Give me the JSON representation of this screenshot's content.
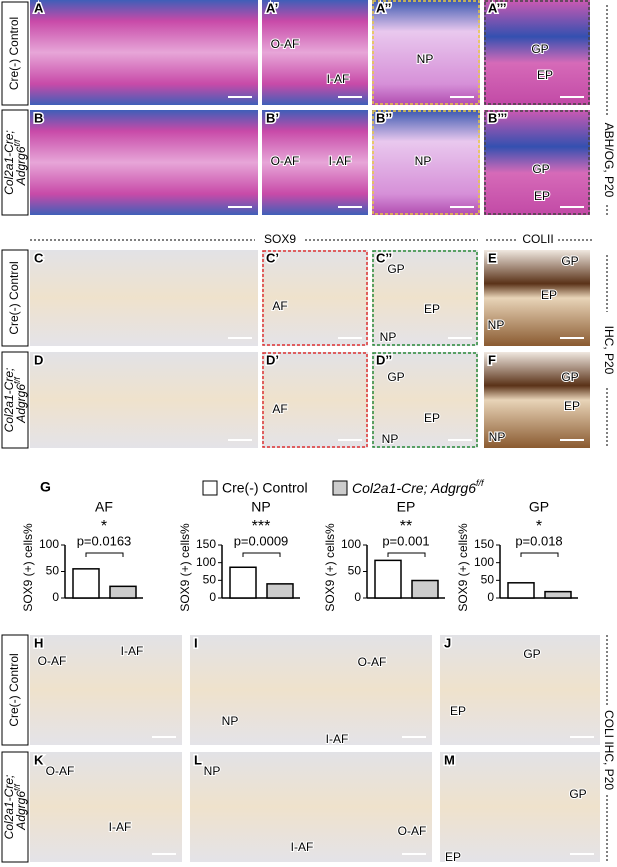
{
  "figure": {
    "genotypes": {
      "control": "Cre(-) Control",
      "mutant_line1": "Col2a1-Cre;",
      "mutant_line2": "Adgrg6",
      "mutant_sup": "f/f"
    },
    "side_labels": [
      "ABH/OG, P20",
      "IHC, P20",
      "COLI IHC, P20"
    ],
    "headers": [
      "SOX9",
      "COLII"
    ],
    "panel_g": "G",
    "panels": [
      {
        "letter": "A",
        "labels": []
      },
      {
        "letter": "A’",
        "labels": [
          "O-AF",
          "I-AF"
        ]
      },
      {
        "letter": "A’’",
        "labels": [
          "NP"
        ]
      },
      {
        "letter": "A’’’",
        "labels": [
          "GP",
          "EP"
        ]
      },
      {
        "letter": "B",
        "labels": []
      },
      {
        "letter": "B’",
        "labels": [
          "O-AF",
          "I-AF"
        ]
      },
      {
        "letter": "B’’",
        "labels": [
          "NP"
        ]
      },
      {
        "letter": "B’’’",
        "labels": [
          "GP",
          "EP"
        ]
      },
      {
        "letter": "C",
        "labels": []
      },
      {
        "letter": "C’",
        "labels": [
          "AF"
        ]
      },
      {
        "letter": "C’’",
        "labels": [
          "GP",
          "EP",
          "NP"
        ]
      },
      {
        "letter": "E",
        "labels": [
          "GP",
          "EP",
          "NP"
        ]
      },
      {
        "letter": "D",
        "labels": []
      },
      {
        "letter": "D’",
        "labels": [
          "AF"
        ]
      },
      {
        "letter": "D’’",
        "labels": [
          "GP",
          "EP",
          "NP"
        ]
      },
      {
        "letter": "F",
        "labels": [
          "GP",
          "EP",
          "NP"
        ]
      },
      {
        "letter": "H",
        "labels": [
          "O-AF",
          "I-AF"
        ]
      },
      {
        "letter": "I",
        "labels": [
          "O-AF",
          "NP",
          "I-AF"
        ]
      },
      {
        "letter": "J",
        "labels": [
          "GP",
          "EP"
        ]
      },
      {
        "letter": "K",
        "labels": [
          "O-AF",
          "I-AF"
        ]
      },
      {
        "letter": "L",
        "labels": [
          "NP",
          "I-AF",
          "O-AF"
        ]
      },
      {
        "letter": "M",
        "labels": [
          "GP",
          "EP"
        ]
      }
    ]
  },
  "legend_colors": [
    "#ffffff",
    "#cccccc"
  ],
  "chart_data": [
    {
      "type": "bar",
      "title": "AF",
      "ylabel": "SOX9 (+) cells%",
      "values": [
        55,
        22
      ],
      "ylim": [
        0,
        100
      ],
      "yticks": [
        0,
        50,
        100
      ],
      "significance": "*",
      "p_label": "p=0.0163"
    },
    {
      "type": "bar",
      "title": "NP",
      "ylabel": "SOX9 (+) cells%",
      "values": [
        87,
        40
      ],
      "ylim": [
        0,
        150
      ],
      "yticks": [
        0,
        50,
        100,
        150
      ],
      "significance": "***",
      "p_label": "p=0.0009"
    },
    {
      "type": "bar",
      "title": "EP",
      "ylabel": "SOX9 (+) cells%",
      "values": [
        71,
        33
      ],
      "ylim": [
        0,
        100
      ],
      "yticks": [
        0,
        50,
        100
      ],
      "significance": "**",
      "p_label": "p=0.001"
    },
    {
      "type": "bar",
      "title": "GP",
      "ylabel": "SOX9 (+) cells%",
      "values": [
        43,
        18
      ],
      "ylim": [
        0,
        150
      ],
      "yticks": [
        0,
        50,
        100,
        150
      ],
      "significance": "*",
      "p_label": "p=0.018"
    }
  ]
}
